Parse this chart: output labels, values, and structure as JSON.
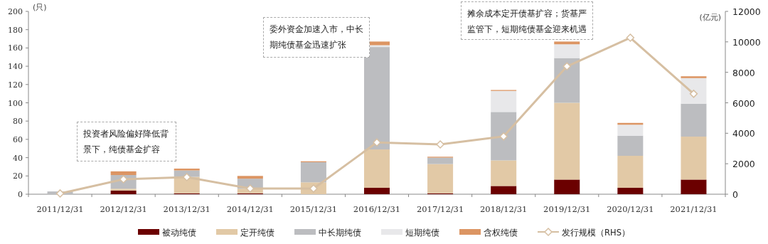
{
  "chart_data": {
    "type": "bar",
    "stacked": true,
    "legend": "bottom",
    "marker": "diamond",
    "categories": [
      "2011/12/31",
      "2012/12/31",
      "2013/12/31",
      "2014/12/31",
      "2015/12/31",
      "2016/12/31",
      "2017/12/31",
      "2018/12/31",
      "2019/12/31",
      "2020/12/31",
      "2021/12/31"
    ],
    "ylabel": "(只)",
    "y2label": "(亿元)",
    "ylim": [
      0,
      200
    ],
    "yticks": [
      0,
      20,
      40,
      60,
      80,
      100,
      120,
      140,
      160,
      180,
      200
    ],
    "y2lim": [
      0,
      12000
    ],
    "y2ticks": [
      0,
      2000,
      4000,
      6000,
      8000,
      10000,
      12000
    ],
    "series": [
      {
        "name": "被动纯债",
        "color": "#6b0000",
        "values": [
          0,
          4,
          1,
          1,
          0,
          7,
          1,
          9,
          16,
          7,
          16
        ]
      },
      {
        "name": "定开纯债",
        "color": "#e2c9a6",
        "values": [
          0,
          2,
          18,
          5,
          13,
          42,
          32,
          28,
          84,
          35,
          47
        ]
      },
      {
        "name": "中长期纯债",
        "color": "#bcbdc0",
        "values": [
          3,
          15,
          7,
          11,
          22,
          112,
          7,
          53,
          49,
          22,
          36
        ]
      },
      {
        "name": "短期纯债",
        "color": "#e8e8ea",
        "values": [
          0,
          null,
          0,
          null,
          null,
          2,
          null,
          23,
          15,
          12,
          28
        ]
      },
      {
        "name": "含权纯债",
        "color": "#dc9563",
        "values": [
          null,
          4,
          2,
          3,
          1,
          4,
          1,
          1,
          3,
          2,
          2
        ]
      },
      {
        "name": "发行规模（RHS）",
        "type": "line",
        "axis": "y2",
        "color": "#d6bfa2",
        "values": [
          50,
          980,
          1120,
          370,
          370,
          3400,
          3270,
          3790,
          8390,
          10270,
          6590
        ]
      }
    ],
    "annotations": [
      "投资者风险偏好降低背景下，纯债基金扩容",
      "委外资金加速入市，中长期纯债基金迅速扩张",
      "摊余成本定开债基扩容；货基严监管下，短期纯债基金迎来机遇"
    ]
  }
}
